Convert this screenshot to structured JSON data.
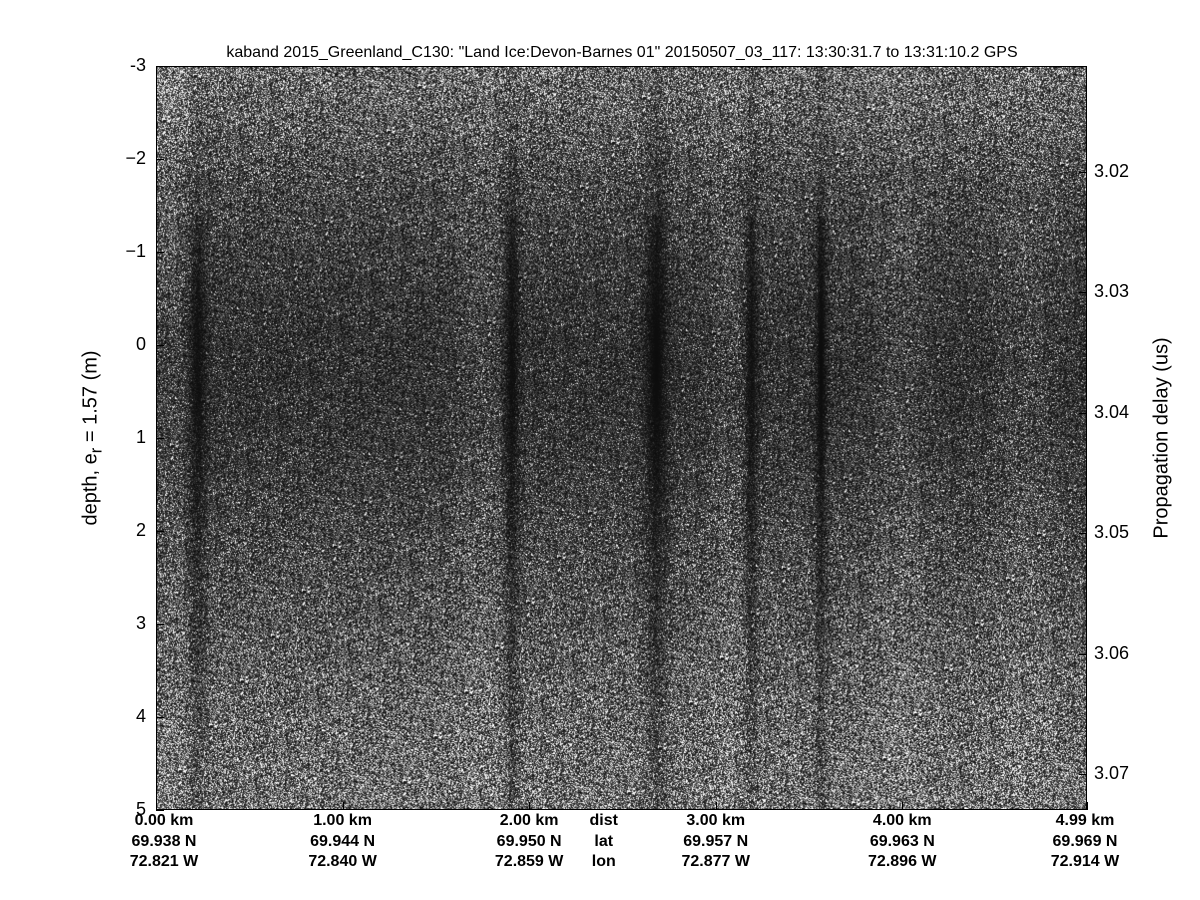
{
  "chart_data": {
    "type": "heatmap",
    "title": "kaband 2015_Greenland_C130: \"Land Ice:Devon-Barnes 01\"  20150507_03_117: 13:30:31.7 to 13:31:10.2 GPS",
    "colormap": "gray",
    "ylabel_left": "depth, e",
    "ylabel_left_sub": "r",
    "ylabel_left_tail": " = 1.57 (m)",
    "ylabel_right": "Propagation delay (us)",
    "ylim_left": [
      -3,
      5
    ],
    "yticks_left": [
      "-3",
      "−2",
      "−1",
      "0",
      "1",
      "2",
      "3",
      "4",
      "5"
    ],
    "yticks_left_values": [
      -3,
      -2,
      -1,
      0,
      1,
      2,
      3,
      4,
      5
    ],
    "yticks_right": [
      "3.02",
      "3.03",
      "3.04",
      "3.05",
      "3.06",
      "3.07"
    ],
    "yticks_right_values": [
      3.02,
      3.03,
      3.04,
      3.05,
      3.06,
      3.07
    ],
    "x_rows_labels": [
      "dist",
      "lat",
      "lon"
    ],
    "x_ticks": [
      {
        "dist": "0.00 km",
        "lat": "69.938 N",
        "lon": "72.821 W",
        "km": 0.0
      },
      {
        "dist": "1.00 km",
        "lat": "69.944 N",
        "lon": "72.840 W",
        "km": 1.0
      },
      {
        "dist": "2.00 km",
        "lat": "69.950 N",
        "lon": "72.859 W",
        "km": 2.0
      },
      {
        "dist": "3.00 km",
        "lat": "69.957 N",
        "lon": "72.877 W",
        "km": 3.0
      },
      {
        "dist": "4.00 km",
        "lat": "69.963 N",
        "lon": "72.896 W",
        "km": 4.0
      },
      {
        "dist": "4.99 km",
        "lat": "69.969 N",
        "lon": "72.914 W",
        "km": 4.99
      }
    ],
    "xlim_km": [
      0,
      4.99
    ],
    "row_label_km": 2.4
  }
}
